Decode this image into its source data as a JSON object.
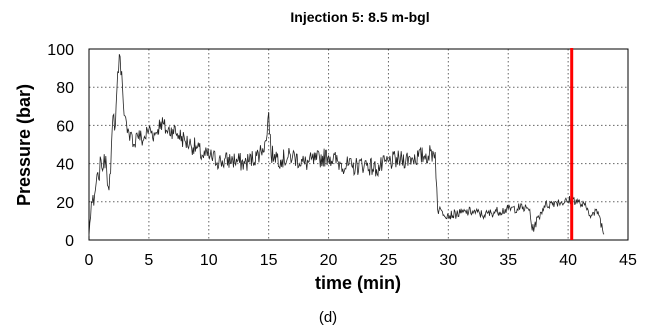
{
  "chart_data": {
    "type": "line",
    "title": "Injection 5: 8.5 m-bgl",
    "xlabel": "time (min)",
    "ylabel": "Pressure (bar)",
    "xlim": [
      0,
      45
    ],
    "ylim": [
      0,
      100
    ],
    "xticks": [
      "0",
      "5",
      "10",
      "15",
      "20",
      "25",
      "30",
      "35",
      "40",
      "45"
    ],
    "yticks": [
      "0",
      "20",
      "40",
      "60",
      "80",
      "100"
    ],
    "grid": true,
    "series_color": "#222222",
    "marker_line": {
      "x": 40.3,
      "color": "#ff0000"
    },
    "panel_label": "(d)",
    "series": [
      {
        "x": [
          0,
          0.2,
          0.4,
          0.6,
          0.8,
          1.0,
          1.2,
          1.4,
          1.6,
          1.8,
          2.0,
          2.2,
          2.4,
          2.6,
          2.8,
          3.0,
          3.2,
          3.4,
          3.6,
          3.8,
          4.0,
          4.5,
          5.0,
          5.5,
          6.0,
          6.5,
          7.0,
          7.5,
          8.0,
          8.5,
          9.0,
          9.5,
          10.0,
          11.0,
          12.0,
          13.0,
          14.0,
          14.5,
          14.8,
          15.0,
          15.2,
          15.5,
          16.0,
          17.0,
          18.0,
          19.0,
          20.0,
          21.0,
          22.0,
          23.0,
          24.0,
          25.0,
          26.0,
          27.0,
          28.0,
          28.9,
          29.1,
          29.5,
          30.0,
          31.0,
          32.0,
          33.0,
          34.0,
          35.0,
          36.0,
          36.8,
          37.0,
          38.0,
          39.0,
          40.0,
          40.3,
          41.0,
          41.5,
          42.0,
          42.5,
          43.0
        ],
        "y": [
          2,
          20,
          18,
          30,
          32,
          42,
          38,
          44,
          28,
          35,
          65,
          60,
          88,
          96,
          80,
          65,
          56,
          52,
          55,
          50,
          56,
          52,
          58,
          55,
          62,
          57,
          58,
          55,
          52,
          50,
          48,
          44,
          44,
          41,
          42,
          40,
          44,
          48,
          52,
          67,
          44,
          45,
          42,
          44,
          40,
          42,
          44,
          40,
          38,
          40,
          37,
          41,
          42,
          43,
          44,
          46,
          16,
          15,
          13,
          14,
          15,
          13,
          15,
          16,
          17,
          16,
          5,
          18,
          20,
          20,
          22,
          19,
          17,
          13,
          15,
          3
        ]
      }
    ]
  }
}
